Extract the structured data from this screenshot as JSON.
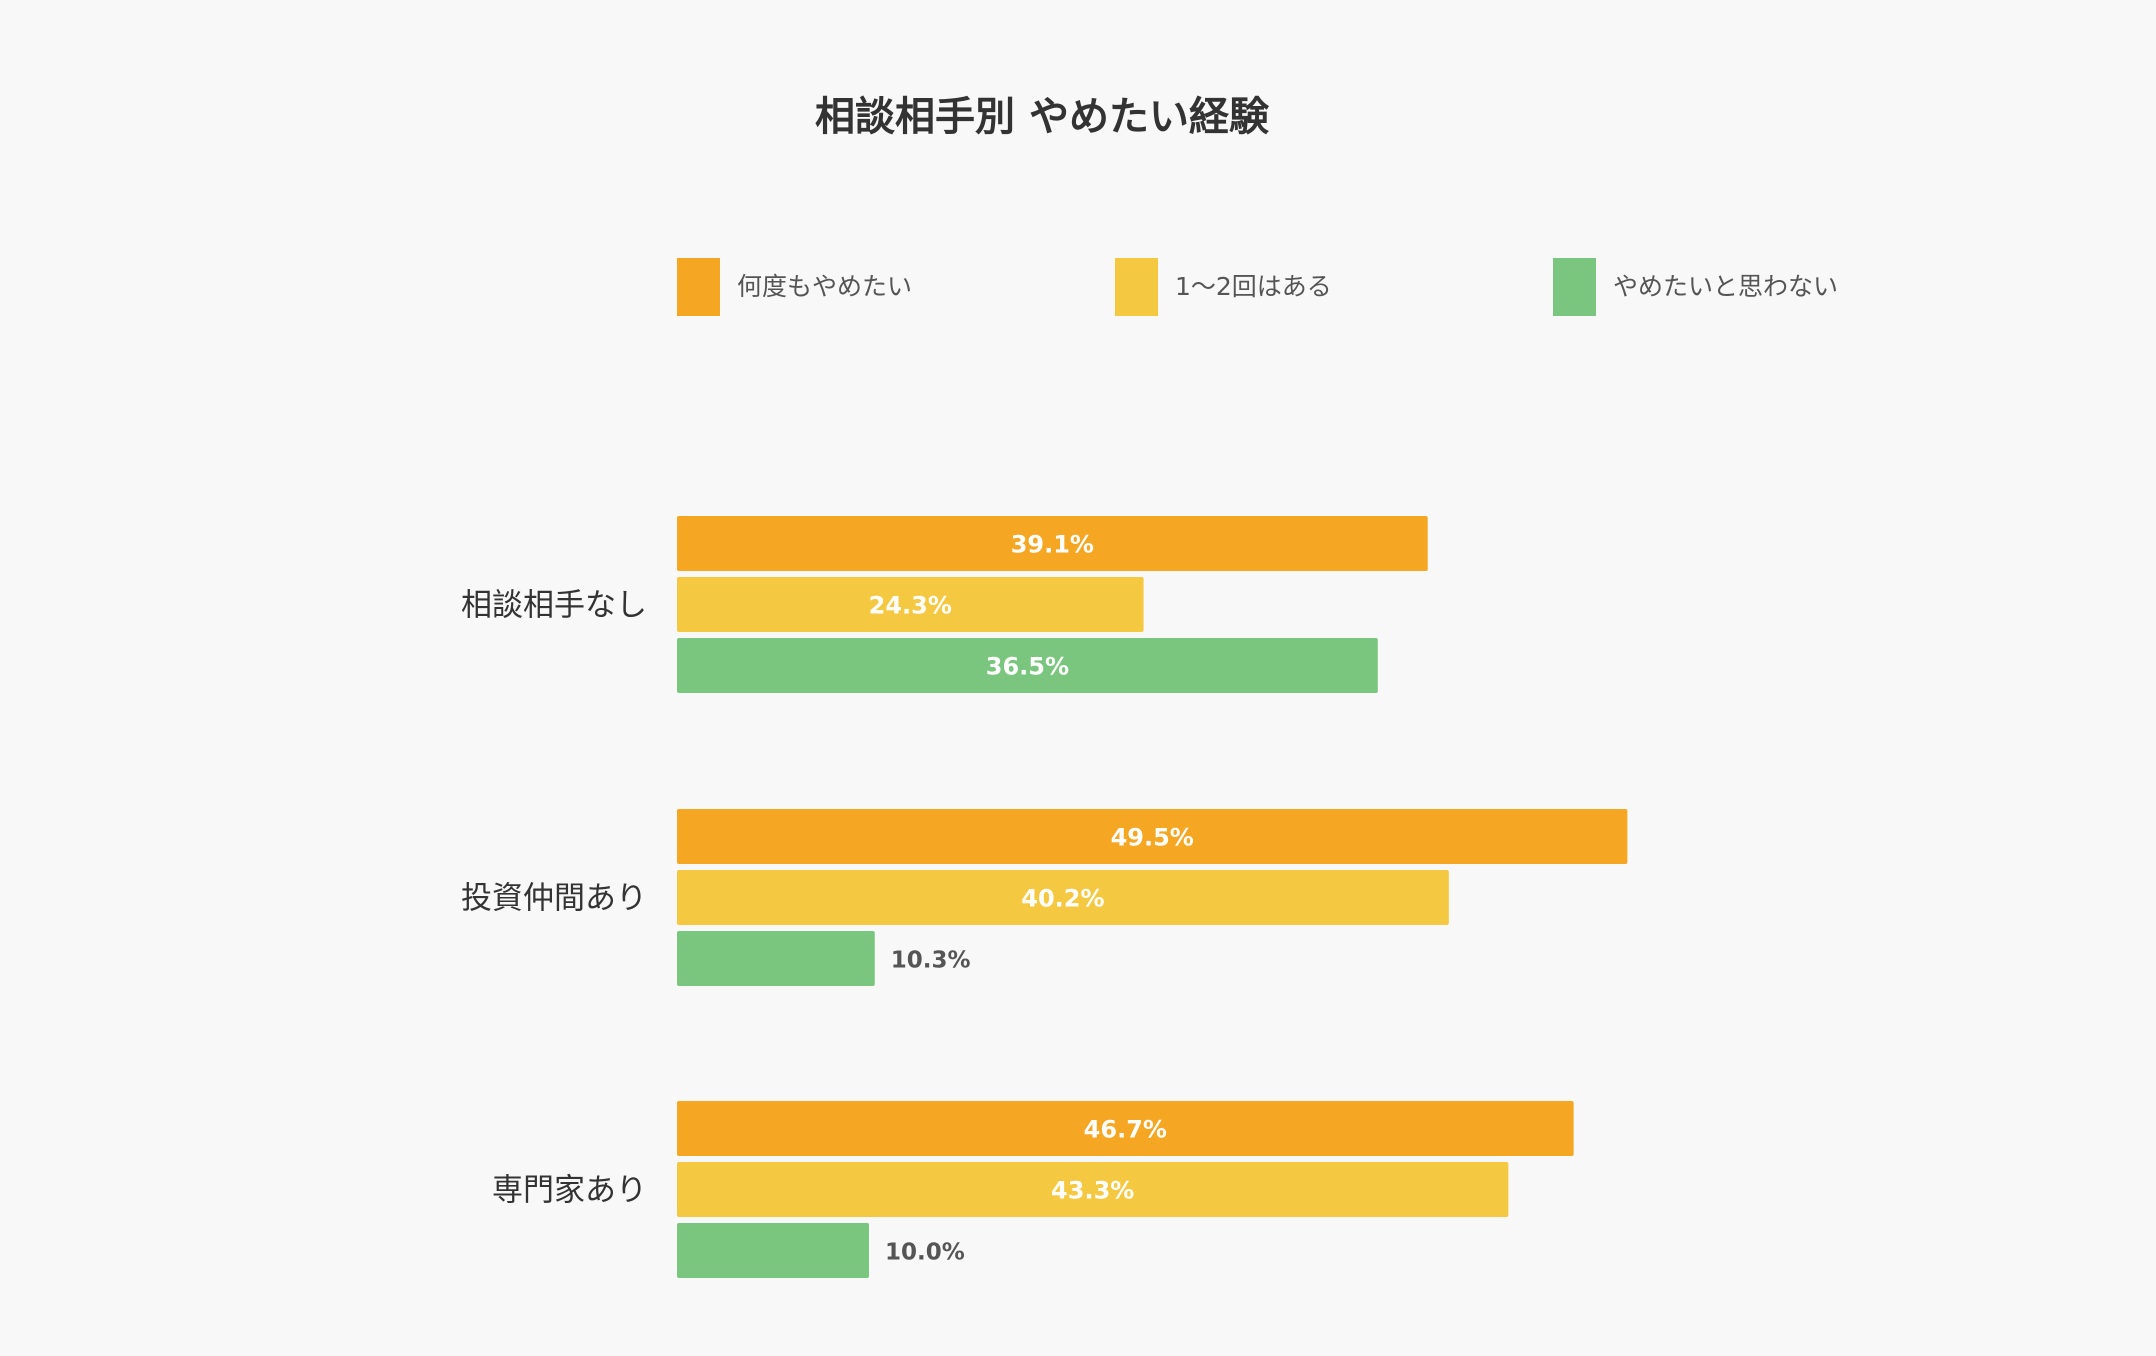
{
  "chart_data": {
    "type": "bar",
    "orientation": "horizontal",
    "title": "相談相手別 やめたい経験",
    "categories": [
      "相談相手なし",
      "投資仲間あり",
      "専門家あり"
    ],
    "series": [
      {
        "name": "何度もやめたい",
        "color": "#F5A623",
        "values": [
          39.1,
          49.5,
          46.7
        ]
      },
      {
        "name": "1〜2回はある",
        "color": "#F5C842",
        "values": [
          24.3,
          40.2,
          43.3
        ]
      },
      {
        "name": "やめたいと思わない",
        "color": "#7BC67E",
        "values": [
          36.5,
          10.3,
          10.0
        ]
      }
    ],
    "value_suffix": "%",
    "legend_position": "top",
    "grid": false
  }
}
